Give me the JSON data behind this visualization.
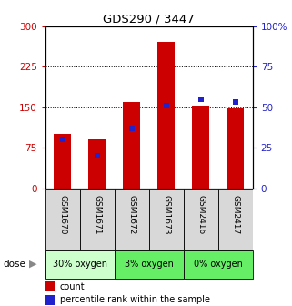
{
  "title": "GDS290 / 3447",
  "samples": [
    "GSM1670",
    "GSM1671",
    "GSM1672",
    "GSM1673",
    "GSM2416",
    "GSM2417"
  ],
  "counts": [
    100,
    90,
    160,
    270,
    153,
    148
  ],
  "percentiles": [
    30,
    20,
    37,
    51,
    55,
    53
  ],
  "left_ylim": [
    0,
    300
  ],
  "right_ylim": [
    0,
    100
  ],
  "left_yticks": [
    0,
    75,
    150,
    225,
    300
  ],
  "right_yticks": [
    0,
    25,
    50,
    75,
    100
  ],
  "left_yticklabels": [
    "0",
    "75",
    "150",
    "225",
    "300"
  ],
  "right_yticklabels": [
    "0",
    "25",
    "50",
    "75",
    "100%"
  ],
  "bar_color": "#cc0000",
  "dot_color": "#2222cc",
  "tick_color_left": "#cc0000",
  "tick_color_right": "#2222cc",
  "bar_width": 0.5,
  "group_defs": [
    {
      "start": 0,
      "end": 1,
      "label": "30% oxygen",
      "color": "#ccffcc"
    },
    {
      "start": 2,
      "end": 3,
      "label": "3% oxygen",
      "color": "#66ee66"
    },
    {
      "start": 4,
      "end": 5,
      "label": "0% oxygen",
      "color": "#66ee66"
    }
  ],
  "dose_label": "dose",
  "legend_count_label": "count",
  "legend_percentile_label": "percentile rank within the sample",
  "grid_linestyle": "dotted",
  "grid_color": "#000000"
}
